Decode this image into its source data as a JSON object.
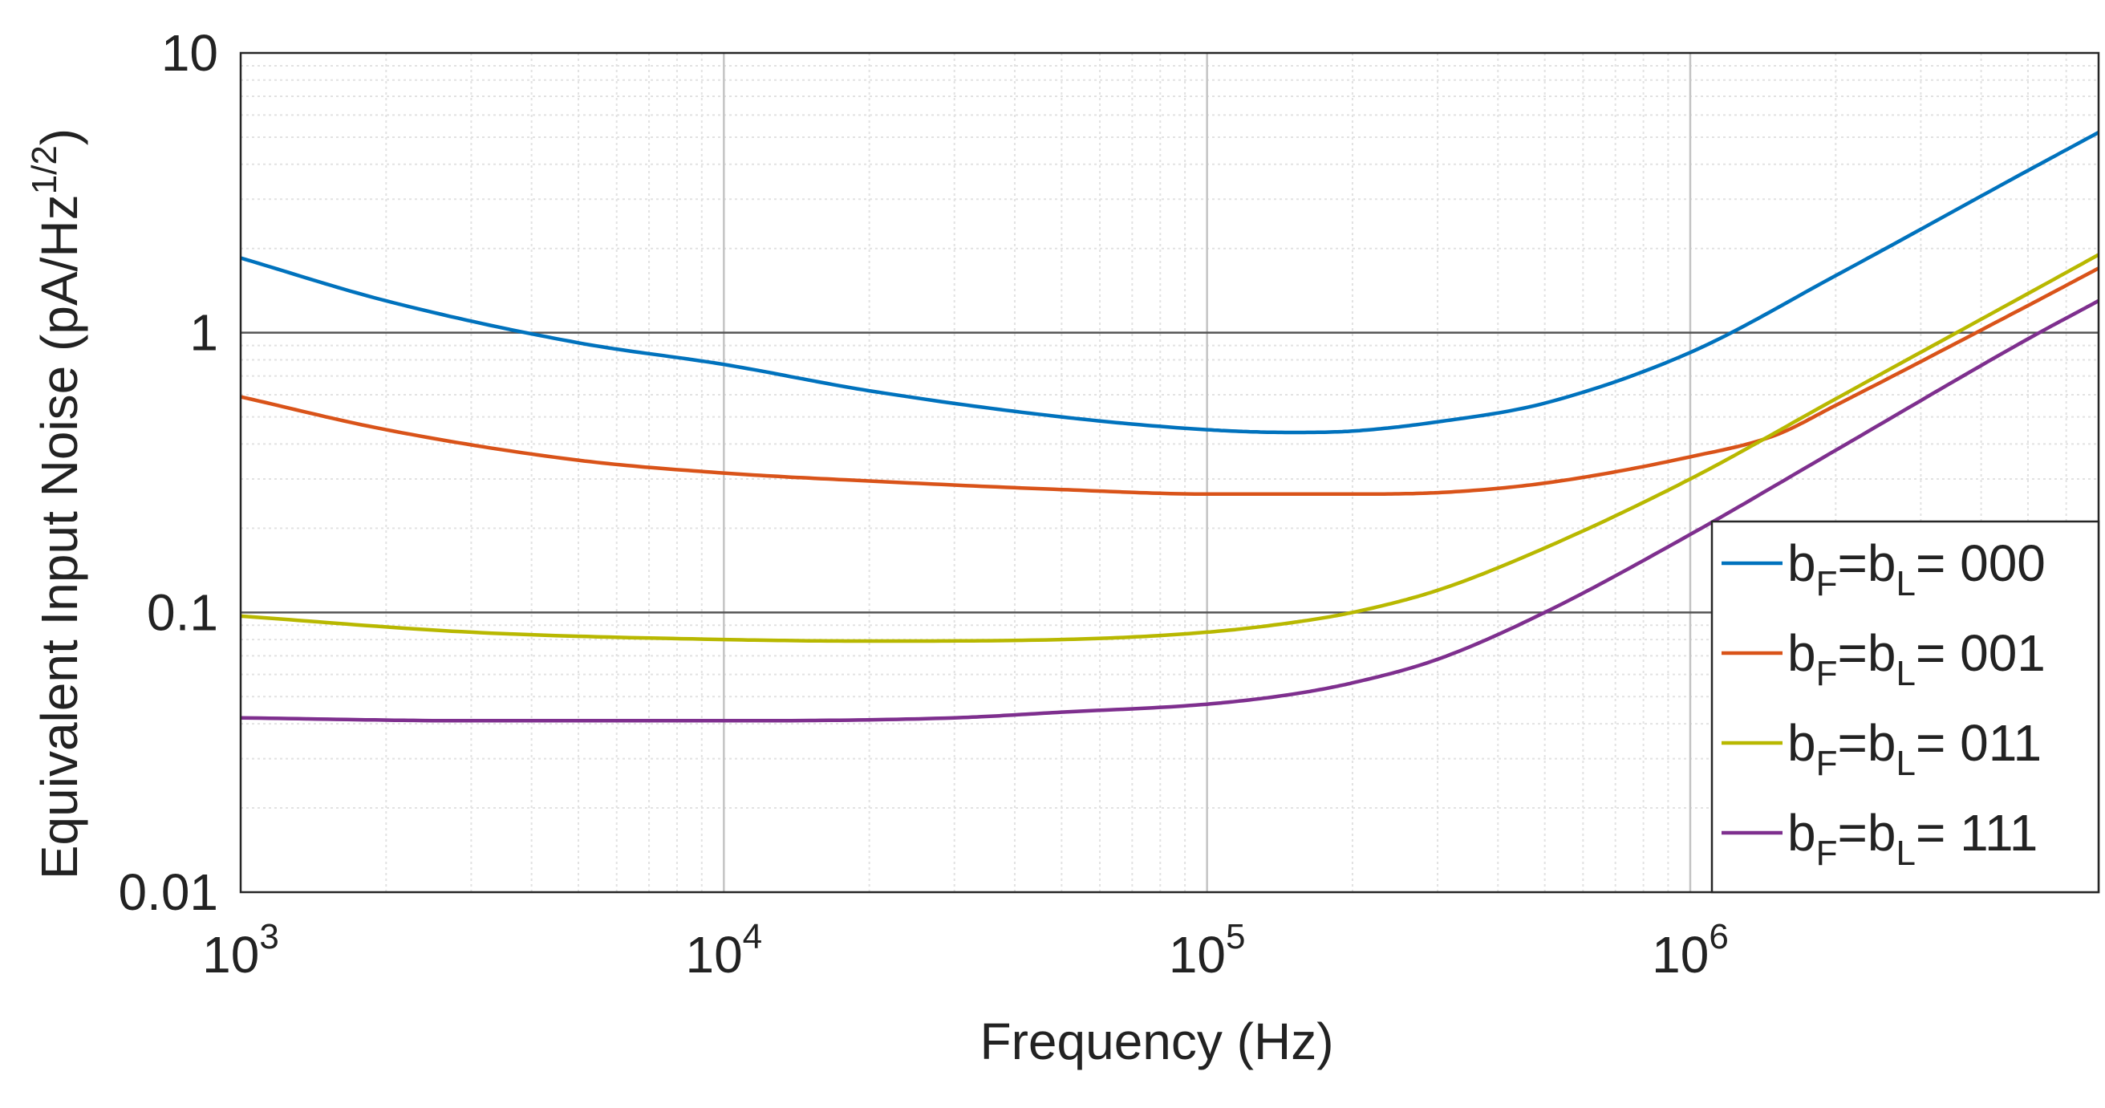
{
  "chart_data": {
    "type": "line",
    "title": "",
    "xlabel": "Frequency (Hz)",
    "ylabel": "Equivalent Input Noise (pA/Hz",
    "ylabel_exponent": "1/2",
    "ylabel_suffix": ")",
    "xscale": "log",
    "yscale": "log",
    "xlim": [
      1000,
      7000000
    ],
    "ylim": [
      0.01,
      10
    ],
    "grid": true,
    "minor_grid": true,
    "x_ticks": [
      {
        "base": "10",
        "exp": "3",
        "value": 1000
      },
      {
        "base": "10",
        "exp": "4",
        "value": 10000
      },
      {
        "base": "10",
        "exp": "5",
        "value": 100000
      },
      {
        "base": "10",
        "exp": "6",
        "value": 1000000
      }
    ],
    "y_ticks": [
      {
        "label": "0.01",
        "value": 0.01
      },
      {
        "label": "0.1",
        "value": 0.1
      },
      {
        "label": "1",
        "value": 1
      },
      {
        "label": "10",
        "value": 10
      }
    ],
    "legend_position": "right",
    "series": [
      {
        "name": "b_F=b_L = 000",
        "legend": {
          "b1": "b",
          "sub1": "F",
          "eq": "=b",
          "sub2": "L",
          "code": "= 000"
        },
        "color": "#0072BD",
        "x": [
          1000,
          2000,
          5000,
          10000,
          20000,
          50000,
          100000,
          150000,
          200000,
          300000,
          500000,
          1000000,
          2000000,
          5000000,
          7000000
        ],
        "y": [
          1.85,
          1.3,
          0.92,
          0.77,
          0.62,
          0.5,
          0.45,
          0.44,
          0.445,
          0.48,
          0.56,
          0.85,
          1.6,
          3.8,
          5.2
        ]
      },
      {
        "name": "b_F=b_L = 001",
        "legend": {
          "b1": "b",
          "sub1": "F",
          "eq": "=b",
          "sub2": "L",
          "code": "= 001"
        },
        "color": "#D95319",
        "x": [
          1000,
          2000,
          5000,
          10000,
          20000,
          50000,
          100000,
          200000,
          300000,
          500000,
          1000000,
          1500000,
          2000000,
          5000000,
          7000000
        ],
        "y": [
          0.59,
          0.45,
          0.35,
          0.315,
          0.295,
          0.275,
          0.265,
          0.265,
          0.268,
          0.29,
          0.36,
          0.43,
          0.55,
          1.25,
          1.7
        ]
      },
      {
        "name": "b_F=b_L = 011",
        "legend": {
          "b1": "b",
          "sub1": "F",
          "eq": "=b",
          "sub2": "L",
          "code": "= 011"
        },
        "color": "#B8B800",
        "x": [
          1000,
          3000,
          10000,
          20000,
          50000,
          100000,
          150000,
          200000,
          300000,
          500000,
          1000000,
          2000000,
          5000000,
          7000000
        ],
        "y": [
          0.097,
          0.085,
          0.08,
          0.079,
          0.08,
          0.085,
          0.092,
          0.1,
          0.12,
          0.17,
          0.3,
          0.58,
          1.38,
          1.9
        ]
      },
      {
        "name": "b_F=b_L = 111",
        "legend": {
          "b1": "b",
          "sub1": "F",
          "eq": "=b",
          "sub2": "L",
          "code": "= 111"
        },
        "color": "#7E2F8E",
        "x": [
          1000,
          3000,
          10000,
          30000,
          50000,
          100000,
          150000,
          200000,
          300000,
          500000,
          1000000,
          2000000,
          5000000,
          7000000
        ],
        "y": [
          0.042,
          0.041,
          0.041,
          0.042,
          0.044,
          0.047,
          0.051,
          0.056,
          0.068,
          0.1,
          0.19,
          0.38,
          0.95,
          1.3
        ]
      }
    ]
  }
}
